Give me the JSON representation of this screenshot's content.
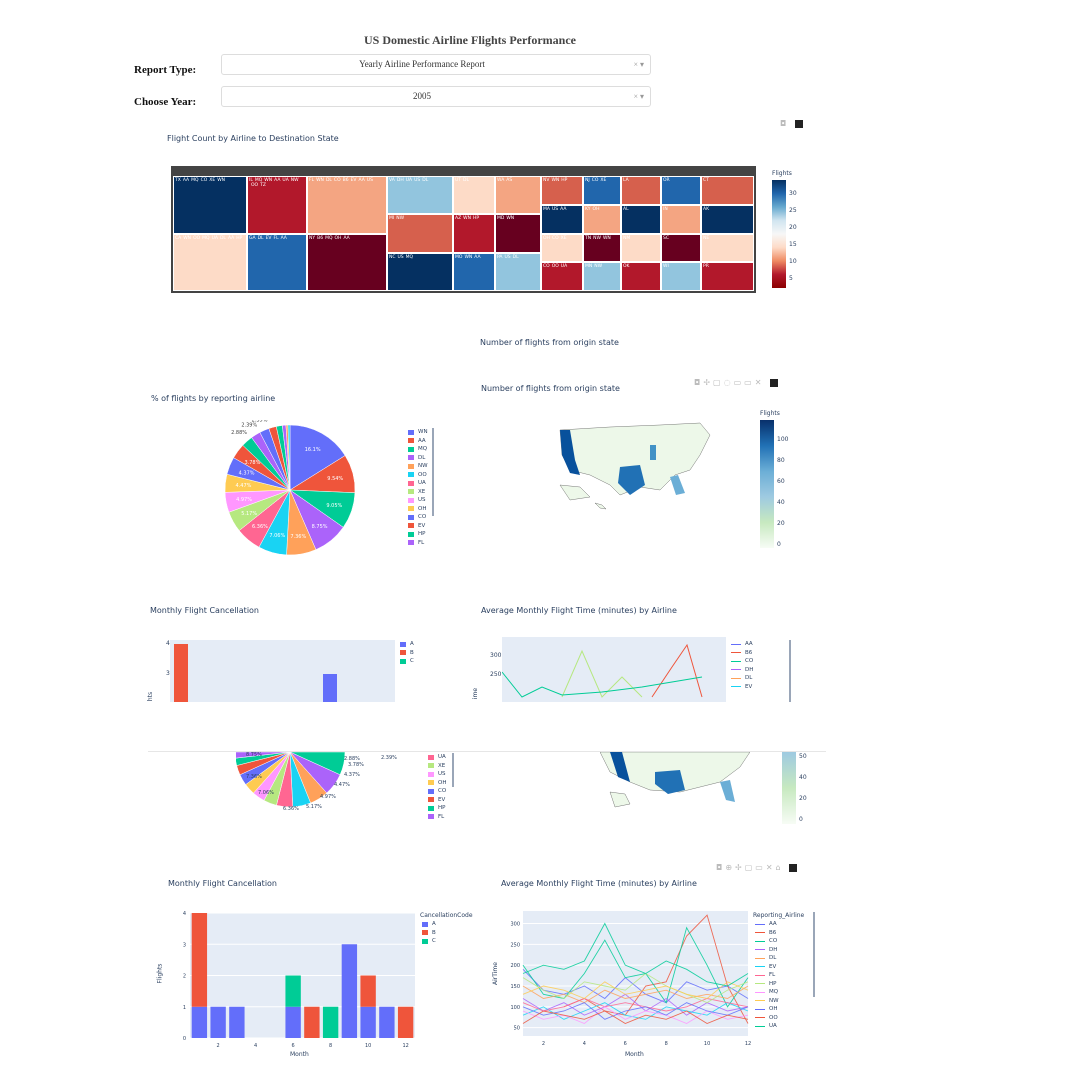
{
  "header": {
    "title": "US Domestic Airline Flights Performance"
  },
  "controls": {
    "report_type": {
      "label": "Report Type:",
      "value": "Yearly Airline Performance Report"
    },
    "year": {
      "label": "Choose Year:",
      "value": "2005"
    },
    "clear_symbol": "×",
    "caret_symbol": "▾"
  },
  "treemap": {
    "title": "Flight Count by Airline to Destination State",
    "colorbar_title": "Flights",
    "colorbar_ticks": [
      "30",
      "25",
      "20",
      "15",
      "10",
      "5"
    ],
    "states": [
      {
        "name": "TX",
        "airlines": [
          "AA",
          "MQ",
          "CO",
          "XE",
          "WN"
        ]
      },
      {
        "name": "CA",
        "airlines": [
          "WN",
          "OO",
          "MQ",
          "UA",
          "DL",
          "AA",
          "HP"
        ]
      },
      {
        "name": "IL",
        "airlines": [
          "MQ",
          "WN",
          "AA",
          "UA",
          "NW",
          "OO",
          "TZ"
        ]
      },
      {
        "name": "GA",
        "airlines": [
          "DL",
          "EV",
          "FL",
          "AA"
        ]
      },
      {
        "name": "FL",
        "airlines": [
          "WN",
          "DL",
          "CO",
          "B6",
          "EV",
          "AA",
          "US"
        ]
      },
      {
        "name": "NY",
        "airlines": [
          "B6",
          "MQ",
          "OH",
          "AA"
        ]
      },
      {
        "name": "VA",
        "airlines": [
          "DH",
          "UA",
          "US",
          "DL"
        ]
      },
      {
        "name": "MI",
        "airlines": [
          "NW"
        ]
      },
      {
        "name": "NC",
        "airlines": [
          "US",
          "MQ"
        ]
      },
      {
        "name": "UT",
        "airlines": [
          "DL"
        ]
      },
      {
        "name": "AZ",
        "airlines": [
          "WN",
          "HP"
        ]
      },
      {
        "name": "MO",
        "airlines": [
          "WN",
          "AA"
        ]
      },
      {
        "name": "WA",
        "airlines": [
          "AS"
        ]
      },
      {
        "name": "MD",
        "airlines": [
          "WN"
        ]
      },
      {
        "name": "PA",
        "airlines": [
          "US",
          "DL"
        ]
      },
      {
        "name": "NV",
        "airlines": [
          "WN",
          "HP"
        ]
      },
      {
        "name": "MA",
        "airlines": [
          "US",
          "AA"
        ]
      },
      {
        "name": "OH",
        "airlines": [
          "CO",
          "XE"
        ]
      },
      {
        "name": "CO",
        "airlines": [
          "OO",
          "UA"
        ]
      },
      {
        "name": "NJ",
        "airlines": [
          "CO",
          "XE"
        ]
      },
      {
        "name": "KY",
        "airlines": [
          "OH"
        ]
      },
      {
        "name": "TN",
        "airlines": [
          "NW",
          "WN"
        ]
      },
      {
        "name": "MN",
        "airlines": [
          "NW"
        ]
      },
      {
        "name": "LA",
        "airlines": []
      },
      {
        "name": "AL",
        "airlines": []
      },
      {
        "name": "NM",
        "airlines": []
      },
      {
        "name": "OK",
        "airlines": []
      },
      {
        "name": "OR",
        "airlines": []
      },
      {
        "name": "IN",
        "airlines": []
      },
      {
        "name": "SC",
        "airlines": []
      },
      {
        "name": "WI",
        "airlines": []
      },
      {
        "name": "CT",
        "airlines": []
      },
      {
        "name": "AK",
        "airlines": []
      },
      {
        "name": "NE",
        "airlines": []
      },
      {
        "name": "PR",
        "airlines": []
      },
      {
        "name": "IA",
        "airlines": []
      },
      {
        "name": "HI",
        "airlines": []
      },
      {
        "name": "AR",
        "airlines": []
      },
      {
        "name": "MT",
        "airlines": []
      },
      {
        "name": "WY",
        "airlines": []
      },
      {
        "name": "RI",
        "airlines": []
      }
    ]
  },
  "map_overlay_title": "Number of flights from origin state",
  "pie": {
    "title": "% of flights by reporting airline",
    "labels": [
      "16.1%",
      "9.54%",
      "9.05%",
      "8.75%",
      "7.36%",
      "7.06%",
      "6.36%",
      "5.17%",
      "4.97%",
      "4.47%",
      "4.37%",
      "3.78%",
      "2.88%",
      "2.39%",
      "2.39%",
      "1.89%",
      "1.49%",
      "0.895%",
      "0.497%",
      "0.497%"
    ],
    "legend": [
      "WN",
      "AA",
      "MQ",
      "DL",
      "NW",
      "OO",
      "UA",
      "XE",
      "US",
      "OH",
      "CO",
      "EV",
      "HP",
      "FL"
    ]
  },
  "map": {
    "title": "Number of flights from origin state",
    "colorbar_title": "Flights",
    "colorbar_ticks": [
      "100",
      "80",
      "60",
      "40",
      "20",
      "0"
    ]
  },
  "cancellation": {
    "title": "Monthly Flight Cancellation",
    "legend_title": "CancellationCode",
    "legend": [
      "A",
      "B",
      "C"
    ],
    "xlabel": "Month",
    "ylabel": "Flights",
    "x_ticks": [
      "2",
      "4",
      "6",
      "8",
      "10",
      "12"
    ],
    "y_ticks": [
      "4",
      "3",
      "2",
      "1",
      "0"
    ]
  },
  "flighttime": {
    "title": "Average Monthly Flight Time (minutes) by Airline",
    "legend_title": "Reporting_Airline",
    "legend": [
      "AA",
      "B6",
      "CO",
      "DH",
      "DL",
      "EV",
      "FL",
      "HP",
      "MQ",
      "NW",
      "OH",
      "OO",
      "UA"
    ],
    "xlabel": "Month",
    "ylabel": "AirTime",
    "x_ticks": [
      "2",
      "4",
      "6",
      "8",
      "10",
      "12"
    ],
    "y_ticks": [
      "300",
      "250",
      "200",
      "150",
      "100",
      "50"
    ]
  },
  "ghost": {
    "pie_labels": [
      "7.36%",
      "7.06%",
      "6.36%",
      "5.17%",
      "4.97%",
      "4.47%",
      "4.37%",
      "3.78%",
      "2.88%",
      "2.39%",
      "8.75%"
    ],
    "pie_legend": [
      "UA",
      "XE",
      "US",
      "OH",
      "CO",
      "EV",
      "HP",
      "FL"
    ],
    "map_ticks": [
      "50",
      "40",
      "20",
      "0"
    ],
    "cancellation_y_ticks": [
      "4",
      "3"
    ],
    "flighttime_y_ticks": [
      "300",
      "250"
    ],
    "flighttime_legend": [
      "AA",
      "B6",
      "CO",
      "DH",
      "DL",
      "EV"
    ],
    "y_fragment": "hts",
    "y_fragment2": "ime"
  },
  "chart_data": [
    {
      "type": "bar",
      "title": "Monthly Flight Cancellation",
      "xlabel": "Month",
      "ylabel": "Flights",
      "ylim": [
        0,
        4
      ],
      "x": [
        1,
        2,
        3,
        6,
        7,
        8,
        9,
        10,
        11,
        12
      ],
      "series": [
        {
          "name": "A",
          "values": [
            1,
            1,
            1,
            1,
            0,
            0,
            3,
            1,
            1,
            0
          ]
        },
        {
          "name": "B",
          "values": [
            3,
            0,
            0,
            0,
            1,
            0,
            0,
            1,
            0,
            1
          ]
        },
        {
          "name": "C",
          "values": [
            0,
            0,
            0,
            1,
            0,
            1,
            0,
            0,
            0,
            0
          ]
        }
      ]
    },
    {
      "type": "line",
      "title": "Average Monthly Flight Time (minutes) by Airline",
      "xlabel": "Month",
      "ylabel": "AirTime",
      "x": [
        1,
        2,
        3,
        4,
        5,
        6,
        7,
        8,
        9,
        10,
        11,
        12
      ],
      "series": [
        {
          "name": "AA",
          "values": [
            190,
            140,
            130,
            150,
            120,
            170,
            130,
            110,
            160,
            140,
            150,
            120
          ]
        },
        {
          "name": "B6",
          "values": [
            null,
            null,
            100,
            120,
            90,
            80,
            150,
            160,
            270,
            320,
            150,
            60
          ]
        },
        {
          "name": "CO",
          "values": [
            200,
            130,
            120,
            180,
            260,
            170,
            180,
            110,
            290,
            200,
            100,
            170
          ]
        },
        {
          "name": "DH",
          "values": [
            120,
            90,
            110,
            80,
            100,
            130,
            90,
            120,
            80,
            110,
            90,
            100
          ]
        },
        {
          "name": "DL",
          "values": [
            150,
            120,
            130,
            110,
            140,
            120,
            130,
            140,
            120,
            130,
            120,
            150
          ]
        },
        {
          "name": "EV",
          "values": [
            80,
            100,
            70,
            90,
            110,
            80,
            70,
            100,
            90,
            80,
            110,
            90
          ]
        },
        {
          "name": "FL",
          "values": [
            110,
            90,
            100,
            120,
            100,
            110,
            100,
            90,
            100,
            120,
            110,
            100
          ]
        },
        {
          "name": "HP",
          "values": [
            170,
            140,
            120,
            160,
            150,
            140,
            180,
            150,
            130,
            110,
            140,
            160
          ]
        },
        {
          "name": "MQ",
          "values": [
            90,
            70,
            80,
            60,
            100,
            70,
            90,
            80,
            60,
            90,
            70,
            80
          ]
        },
        {
          "name": "NW",
          "values": [
            130,
            150,
            140,
            120,
            160,
            130,
            140,
            150,
            130,
            120,
            160,
            140
          ]
        },
        {
          "name": "OH",
          "values": [
            100,
            80,
            90,
            110,
            70,
            90,
            100,
            80,
            110,
            90,
            80,
            100
          ]
        },
        {
          "name": "OO",
          "values": [
            60,
            90,
            80,
            70,
            90,
            60,
            80,
            70,
            90,
            60,
            80,
            70
          ]
        },
        {
          "name": "UA",
          "values": [
            180,
            200,
            190,
            210,
            300,
            200,
            180,
            210,
            190,
            160,
            150,
            180
          ]
        }
      ]
    }
  ]
}
